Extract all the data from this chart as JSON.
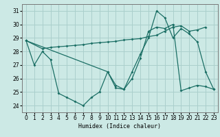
{
  "xlabel": "Humidex (Indice chaleur)",
  "bg_color": "#cce9e5",
  "grid_color": "#aacfcc",
  "line_color": "#1a6e64",
  "ylim": [
    23.5,
    31.5
  ],
  "xlim": [
    -0.5,
    23.5
  ],
  "yticks": [
    24,
    25,
    26,
    27,
    28,
    29,
    30,
    31
  ],
  "xticks": [
    0,
    1,
    2,
    3,
    4,
    5,
    6,
    7,
    8,
    9,
    10,
    11,
    12,
    13,
    14,
    15,
    16,
    17,
    18,
    19,
    20,
    21,
    22,
    23
  ],
  "series": [
    {
      "x": [
        0,
        1,
        2,
        3,
        4,
        5,
        6,
        7,
        8,
        9,
        10,
        11,
        12,
        13,
        14,
        15,
        16,
        17,
        18,
        19,
        20,
        21,
        22,
        23
      ],
      "y": [
        28.8,
        27.0,
        28.0,
        27.4,
        24.9,
        24.6,
        24.3,
        24.0,
        24.6,
        25.0,
        26.5,
        25.3,
        25.2,
        26.5,
        27.8,
        29.0,
        31.0,
        30.5,
        29.0,
        29.7,
        29.3,
        28.7,
        26.5,
        25.2
      ]
    },
    {
      "x": [
        0,
        2,
        3,
        4,
        5,
        6,
        7,
        8,
        9,
        10,
        11,
        12,
        13,
        14,
        15,
        16,
        17,
        18,
        19,
        20,
        21,
        22
      ],
      "y": [
        28.8,
        28.2,
        28.3,
        28.35,
        28.4,
        28.45,
        28.5,
        28.6,
        28.65,
        28.7,
        28.75,
        28.85,
        28.9,
        28.95,
        29.1,
        29.2,
        29.5,
        29.8,
        29.9,
        29.5,
        29.6,
        29.8
      ]
    },
    {
      "x": [
        0,
        10,
        11,
        12,
        13,
        14,
        15,
        16,
        17,
        18,
        19,
        20,
        21,
        22,
        23
      ],
      "y": [
        28.8,
        26.5,
        25.5,
        25.2,
        26.0,
        27.5,
        29.5,
        29.8,
        29.7,
        30.0,
        25.1,
        25.3,
        25.5,
        25.4,
        25.2
      ]
    }
  ]
}
